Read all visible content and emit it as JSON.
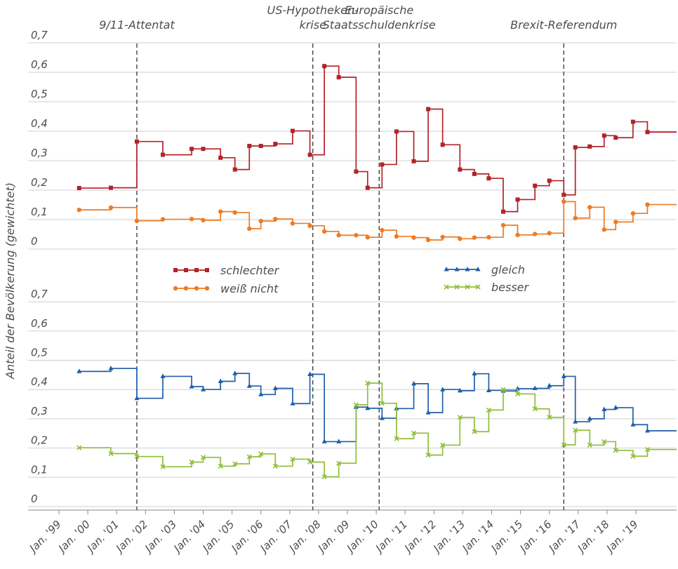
{
  "chart_data": {
    "type": "line",
    "ylabel": "Anteil der Bevölkerung (gewichtet)",
    "y_tick_labels": [
      "0",
      "0,1",
      "0,2",
      "0,3",
      "0,4",
      "0,5",
      "0,6",
      "0,7"
    ],
    "ylim": [
      0,
      0.7
    ],
    "x_tick_labels": [
      "Jan. '99",
      "Jan. '00",
      "Jan. '01",
      "Jan. '02",
      "Jan. '03",
      "Jan. '04",
      "Jan. '05",
      "Jan. '06",
      "Jan. '07",
      "Jan. '08",
      "Jan. '09",
      "Jan. '10",
      "Jan. '11",
      "Jan. '12",
      "Jan. '13",
      "Jan. '14",
      "Jan. '15",
      "Jan. '16",
      "Jan. '17",
      "Jan. '18",
      "Jan. '19"
    ],
    "x_tick_years": [
      1999,
      2000,
      2001,
      2002,
      2003,
      2004,
      2005,
      2006,
      2007,
      2008,
      2009,
      2010,
      2011,
      2012,
      2013,
      2014,
      2015,
      2016,
      2017,
      2018,
      2019
    ],
    "xlim": [
      1999,
      2019.5
    ],
    "events": [
      {
        "lines": [
          "9/11-Attentat"
        ],
        "x": 2001.7
      },
      {
        "lines": [
          "US-Hypotheken-",
          "krise"
        ],
        "x": 2007.8
      },
      {
        "lines": [
          "Europäische",
          "Staatsschuldenkrise"
        ],
        "x": 2010.1
      },
      {
        "lines": [
          "Brexit-Referendum"
        ],
        "x": 2016.5
      }
    ],
    "panels": [
      {
        "name": "top",
        "series": [
          {
            "name": "schlechter",
            "color": "#b22329",
            "marker": "square",
            "x": [
              1999.7,
              2000.8,
              2001.7,
              2002.6,
              2003.6,
              2004.0,
              2004.6,
              2005.1,
              2005.6,
              2006.0,
              2006.5,
              2007.1,
              2007.7,
              2008.2,
              2008.7,
              2009.3,
              2009.7,
              2010.2,
              2010.7,
              2011.3,
              2011.8,
              2012.3,
              2012.9,
              2013.4,
              2013.9,
              2014.4,
              2014.9,
              2015.5,
              2016.0,
              2016.5,
              2016.9,
              2017.4,
              2017.9,
              2018.3,
              2018.9,
              2019.4
            ],
            "y": [
              0.207,
              0.208,
              0.365,
              0.32,
              0.34,
              0.34,
              0.31,
              0.27,
              0.35,
              0.35,
              0.357,
              0.401,
              0.32,
              0.621,
              0.583,
              0.263,
              0.208,
              0.287,
              0.399,
              0.298,
              0.475,
              0.354,
              0.27,
              0.255,
              0.24,
              0.127,
              0.168,
              0.215,
              0.232,
              0.184,
              0.345,
              0.348,
              0.385,
              0.378,
              0.432,
              0.397
            ]
          },
          {
            "name": "weiß nicht",
            "color": "#ee7b24",
            "marker": "circle",
            "x": [
              1999.7,
              2000.8,
              2001.7,
              2002.6,
              2003.6,
              2004.0,
              2004.6,
              2005.1,
              2005.6,
              2006.0,
              2006.5,
              2007.1,
              2007.7,
              2008.2,
              2008.7,
              2009.3,
              2009.7,
              2010.2,
              2010.7,
              2011.3,
              2011.8,
              2012.3,
              2012.9,
              2013.4,
              2013.9,
              2014.4,
              2014.9,
              2015.5,
              2016.0,
              2016.5,
              2016.9,
              2017.4,
              2017.9,
              2018.3,
              2018.9,
              2019.4
            ],
            "y": [
              0.133,
              0.141,
              0.096,
              0.101,
              0.102,
              0.098,
              0.127,
              0.124,
              0.069,
              0.095,
              0.102,
              0.087,
              0.079,
              0.06,
              0.047,
              0.047,
              0.04,
              0.064,
              0.043,
              0.039,
              0.031,
              0.041,
              0.035,
              0.039,
              0.04,
              0.081,
              0.048,
              0.051,
              0.054,
              0.161,
              0.105,
              0.142,
              0.066,
              0.092,
              0.121,
              0.151
            ]
          }
        ]
      },
      {
        "name": "bottom",
        "series": [
          {
            "name": "gleich",
            "color": "#1f5ea8",
            "marker": "triangle",
            "x": [
              1999.7,
              2000.8,
              2001.7,
              2002.6,
              2003.6,
              2004.0,
              2004.6,
              2005.1,
              2005.6,
              2006.0,
              2006.5,
              2007.1,
              2007.7,
              2008.2,
              2008.7,
              2009.3,
              2009.7,
              2010.2,
              2010.7,
              2011.3,
              2011.8,
              2012.3,
              2012.9,
              2013.4,
              2013.9,
              2014.4,
              2014.9,
              2015.5,
              2016.0,
              2016.5,
              2016.9,
              2017.4,
              2017.9,
              2018.3,
              2018.9,
              2019.4
            ],
            "y": [
              0.462,
              0.472,
              0.37,
              0.445,
              0.41,
              0.4,
              0.428,
              0.455,
              0.412,
              0.383,
              0.404,
              0.352,
              0.452,
              0.222,
              0.222,
              0.34,
              0.336,
              0.302,
              0.335,
              0.42,
              0.321,
              0.4,
              0.396,
              0.454,
              0.397,
              0.395,
              0.403,
              0.404,
              0.413,
              0.445,
              0.29,
              0.3,
              0.332,
              0.338,
              0.28,
              0.259
            ]
          },
          {
            "name": "besser",
            "color": "#8fbe3a",
            "marker": "x",
            "x": [
              1999.7,
              2000.8,
              2001.7,
              2002.6,
              2003.6,
              2004.0,
              2004.6,
              2005.1,
              2005.6,
              2006.0,
              2006.5,
              2007.1,
              2007.7,
              2008.2,
              2008.7,
              2009.3,
              2009.7,
              2010.2,
              2010.7,
              2011.3,
              2011.8,
              2012.3,
              2012.9,
              2013.4,
              2013.9,
              2014.4,
              2014.9,
              2015.5,
              2016.0,
              2016.5,
              2016.9,
              2017.4,
              2017.9,
              2018.3,
              2018.9,
              2019.4
            ],
            "y": [
              0.201,
              0.181,
              0.171,
              0.136,
              0.152,
              0.168,
              0.138,
              0.146,
              0.17,
              0.18,
              0.138,
              0.162,
              0.152,
              0.102,
              0.148,
              0.348,
              0.422,
              0.353,
              0.232,
              0.251,
              0.176,
              0.21,
              0.305,
              0.256,
              0.33,
              0.4,
              0.385,
              0.334,
              0.305,
              0.211,
              0.261,
              0.21,
              0.222,
              0.192,
              0.172,
              0.195
            ]
          }
        ]
      }
    ],
    "legend": [
      {
        "name": "schlechter",
        "color": "#b22329",
        "marker": "square"
      },
      {
        "name": "weiß nicht",
        "color": "#ee7b24",
        "marker": "circle"
      },
      {
        "name": "gleich",
        "color": "#1f5ea8",
        "marker": "triangle"
      },
      {
        "name": "besser",
        "color": "#8fbe3a",
        "marker": "x"
      }
    ]
  }
}
